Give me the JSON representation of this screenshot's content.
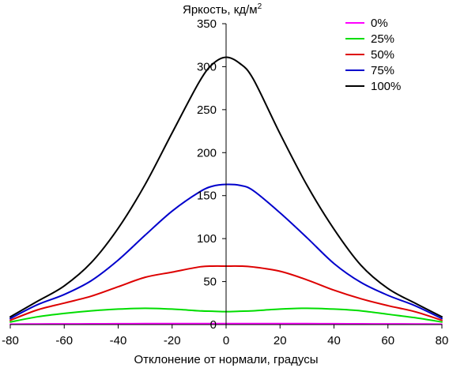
{
  "chart_data": {
    "type": "line",
    "title": "",
    "ylabel": "Яркость, кд/м",
    "ylabel_superscript": "2",
    "xlabel": "Отклонение от нормали, градусы",
    "xlim": [
      -80,
      80
    ],
    "ylim": [
      0,
      350
    ],
    "x_ticks": [
      "-80",
      "-60",
      "-40",
      "-20",
      "0",
      "20",
      "40",
      "60",
      "80"
    ],
    "y_ticks": [
      "0",
      "50",
      "100",
      "150",
      "200",
      "250",
      "300",
      "350"
    ],
    "grid": false,
    "legend_position": "top-right",
    "x": [
      -80,
      -70,
      -60,
      -50,
      -40,
      -30,
      -20,
      -10,
      -5,
      0,
      5,
      10,
      20,
      30,
      40,
      50,
      60,
      70,
      80
    ],
    "series": [
      {
        "name": "0%",
        "color": "#ff00ff",
        "values": [
          0.5,
          0.7,
          0.8,
          0.9,
          1.0,
          1.1,
          1.1,
          1.2,
          1.2,
          1.2,
          1.2,
          1.2,
          1.1,
          1.1,
          1.0,
          0.9,
          0.8,
          0.7,
          0.5
        ]
      },
      {
        "name": "25%",
        "color": "#00dd00",
        "values": [
          3,
          9,
          13,
          16,
          18,
          19,
          18,
          16,
          15.5,
          15,
          15.5,
          16,
          18,
          19,
          18,
          16,
          12,
          8,
          3
        ]
      },
      {
        "name": "50%",
        "color": "#dd0000",
        "values": [
          5,
          17,
          25,
          33,
          44,
          55,
          61,
          67,
          68,
          68,
          68,
          67,
          62,
          52,
          40,
          30,
          22,
          15,
          5
        ]
      },
      {
        "name": "75%",
        "color": "#0000cc",
        "values": [
          7,
          23,
          35,
          51,
          75,
          104,
          132,
          154,
          161,
          163,
          162,
          156,
          130,
          101,
          71,
          49,
          34,
          22,
          7
        ]
      },
      {
        "name": "100%",
        "color": "#000000",
        "values": [
          9,
          27,
          45,
          72,
          112,
          163,
          223,
          282,
          303,
          311,
          304,
          286,
          222,
          162,
          111,
          69,
          42,
          25,
          9
        ]
      }
    ]
  }
}
